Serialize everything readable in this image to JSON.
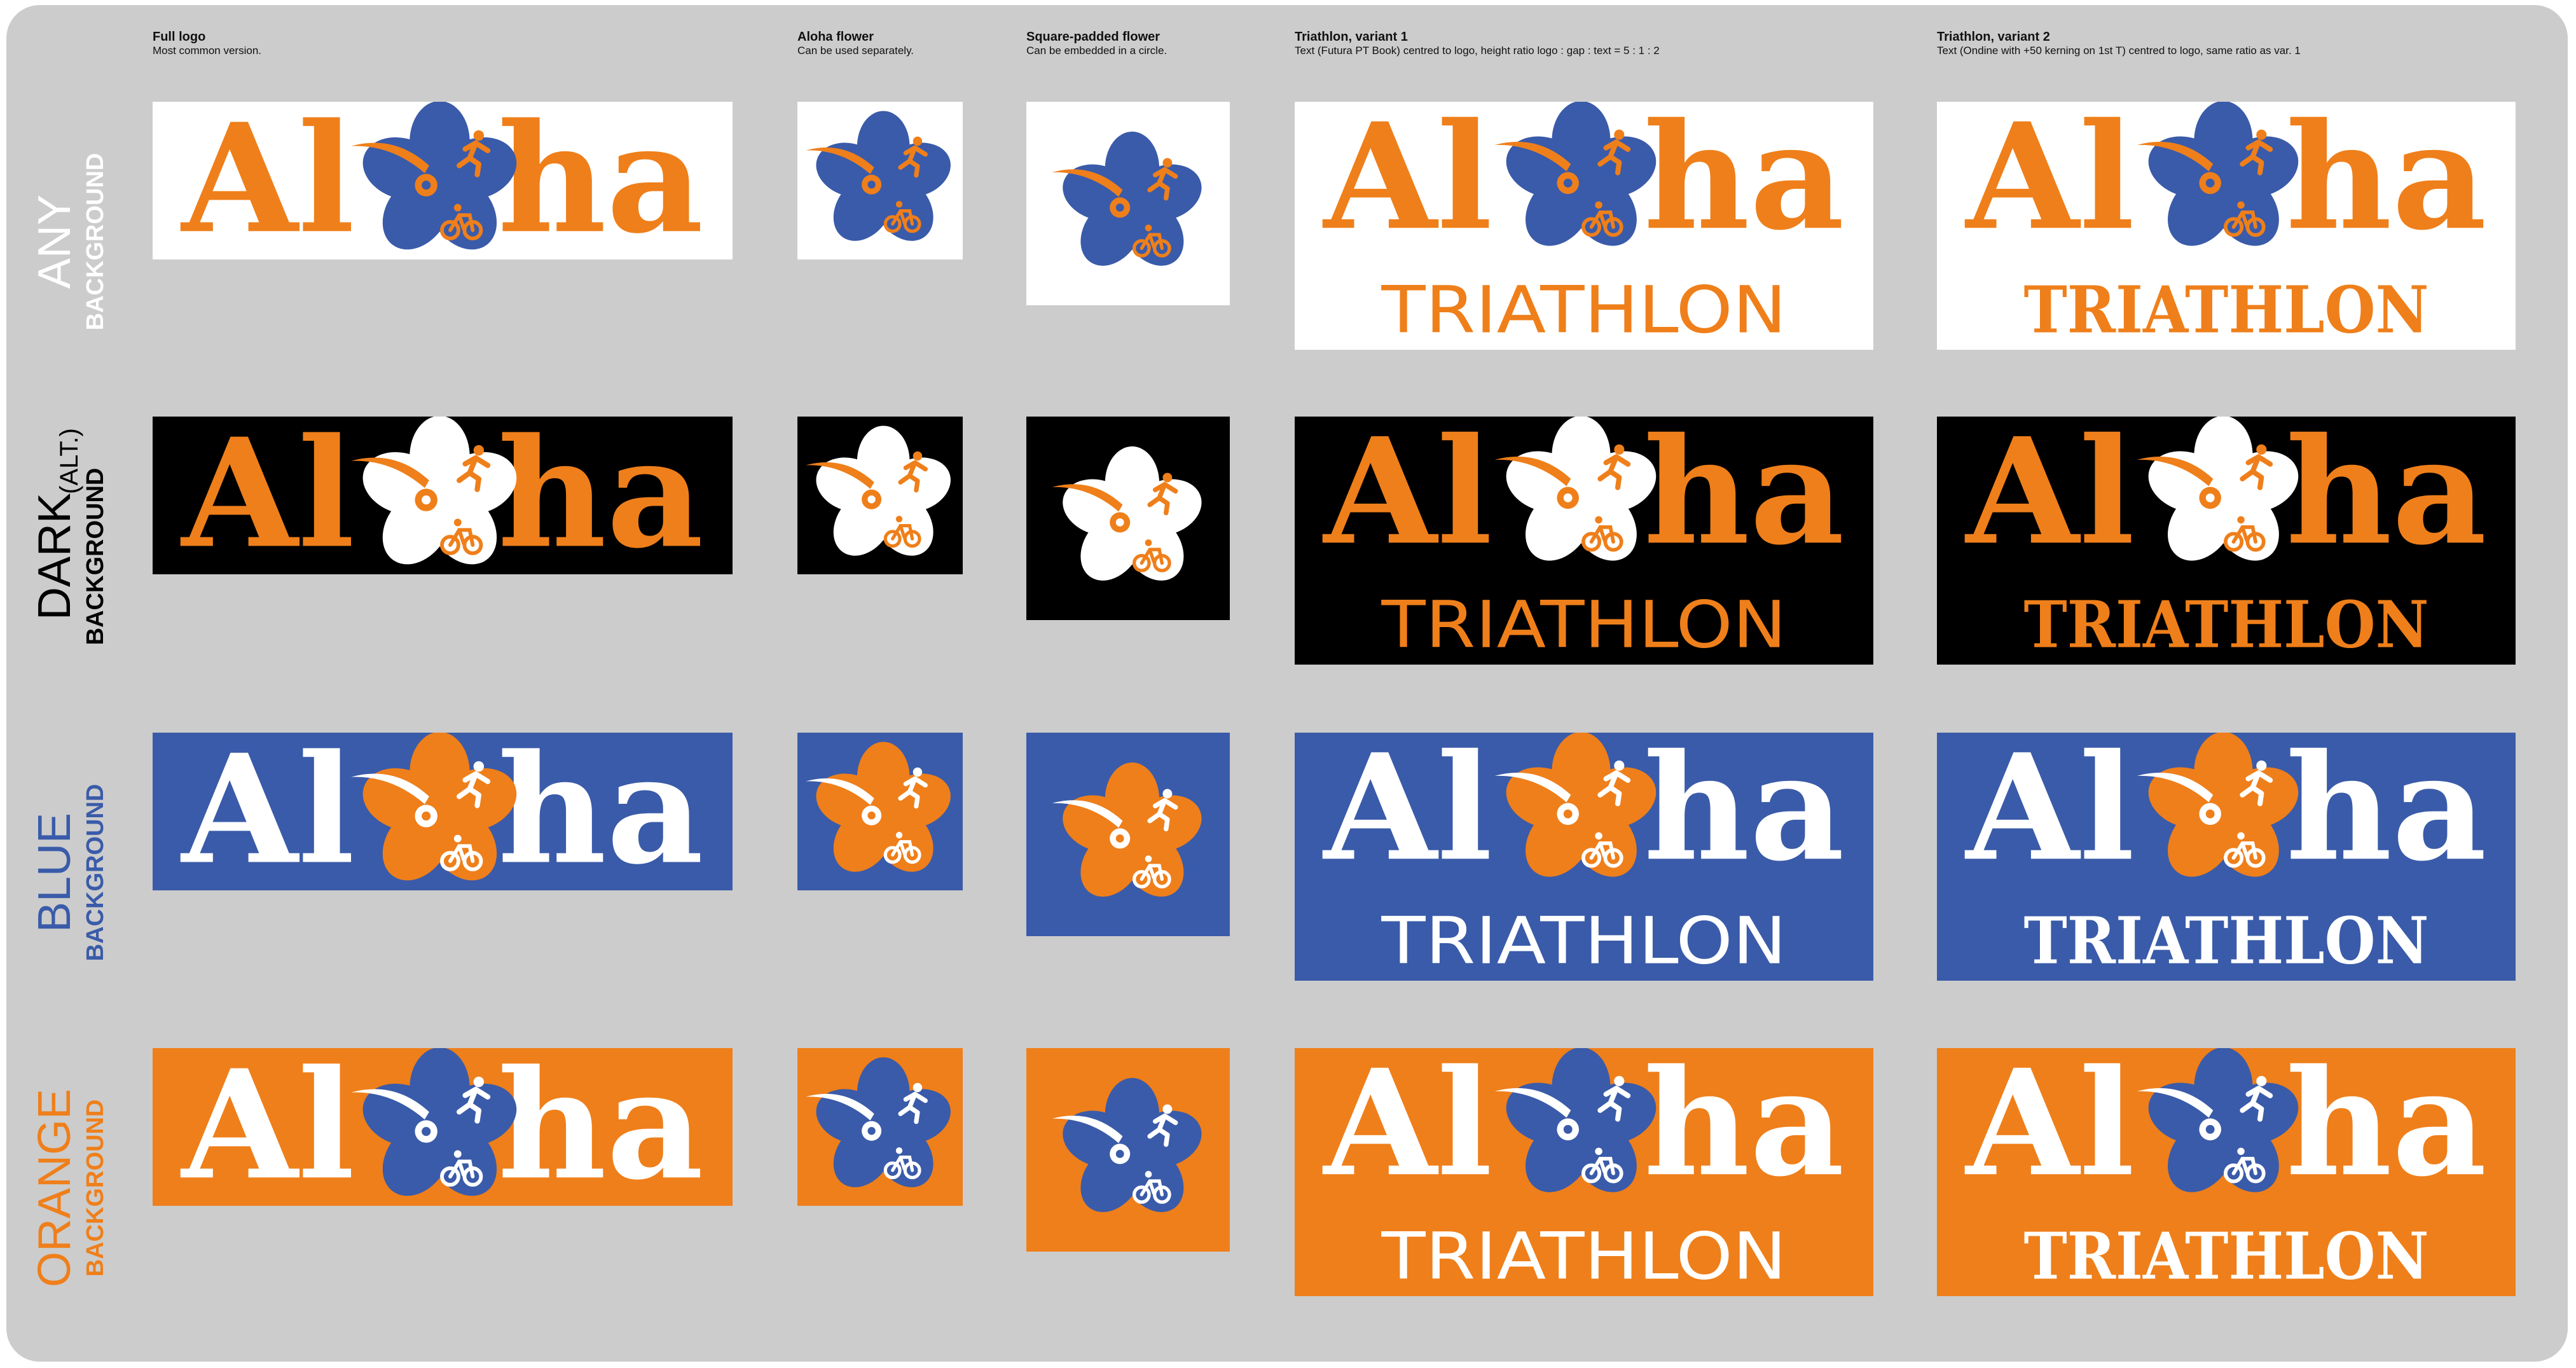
{
  "colors": {
    "orange": "#EF7F1A",
    "blue": "#3A5BA9",
    "white": "#FFFFFF",
    "black": "#000000",
    "sheet": "#CCCCCC"
  },
  "columns": [
    {
      "title": "Full logo",
      "desc": "Most common version."
    },
    {
      "title": "Aloha flower",
      "desc": "Can be used separately."
    },
    {
      "title": "Square-padded flower",
      "desc": "Can be embedded in a circle."
    },
    {
      "title": "Triathlon, variant 1",
      "desc": "Text (Futura PT Book) centred to logo, height ratio logo : gap : text = 5 : 1 : 2"
    },
    {
      "title": "Triathlon, variant 2",
      "desc": "Text (Ondine with +50 kerning on 1st T) centred to logo, same ratio as var. 1"
    }
  ],
  "rows": [
    {
      "label_main": "ANY",
      "label_sub": "BACKGROUND",
      "label_alt": "",
      "label_color": "#FFFFFF",
      "bg": "#FFFFFF",
      "word": "#EF7F1A",
      "petal": "#3A5BA9",
      "accent": "#EF7F1A",
      "icon": "#EF7F1A",
      "icon_bg": "#FFFFFF",
      "swoosh": "#EF7F1A",
      "hub": "#EF7F1A",
      "tri": "#EF7F1A"
    },
    {
      "label_main": "DARK",
      "label_sub": "BACKGROUND",
      "label_alt": "(ALT.)",
      "label_color": "#000000",
      "bg": "#000000",
      "word": "#EF7F1A",
      "petal": "#FFFFFF",
      "accent": "#EF7F1A",
      "icon": "#EF7F1A",
      "icon_bg": "#FFFFFF",
      "swoosh": "#EF7F1A",
      "hub": "#EF7F1A",
      "tri": "#EF7F1A"
    },
    {
      "label_main": "BLUE",
      "label_sub": "BACKGROUND",
      "label_alt": "",
      "label_color": "#3A5BA9",
      "bg": "#3A5BA9",
      "word": "#FFFFFF",
      "petal": "#EF7F1A",
      "accent": "#FFFFFF",
      "icon": "#FFFFFF",
      "icon_bg": "#EF7F1A",
      "swoosh": "#FFFFFF",
      "hub": "#FFFFFF",
      "tri": "#FFFFFF"
    },
    {
      "label_main": "ORANGE",
      "label_sub": "BACKGROUND",
      "label_alt": "",
      "label_color": "#EF7F1A",
      "bg": "#EF7F1A",
      "word": "#FFFFFF",
      "petal": "#3A5BA9",
      "accent": "#FFFFFF",
      "icon": "#FFFFFF",
      "icon_bg": "#3A5BA9",
      "swoosh": "#FFFFFF",
      "hub": "#FFFFFF",
      "tri": "#FFFFFF"
    }
  ],
  "logo": {
    "word_left": "Al",
    "word_right": "ha",
    "tagline": "TRIATHLON",
    "icons": [
      "flower-icon",
      "runner-icon",
      "bicycle-icon",
      "swimmer-swoosh-icon"
    ]
  }
}
